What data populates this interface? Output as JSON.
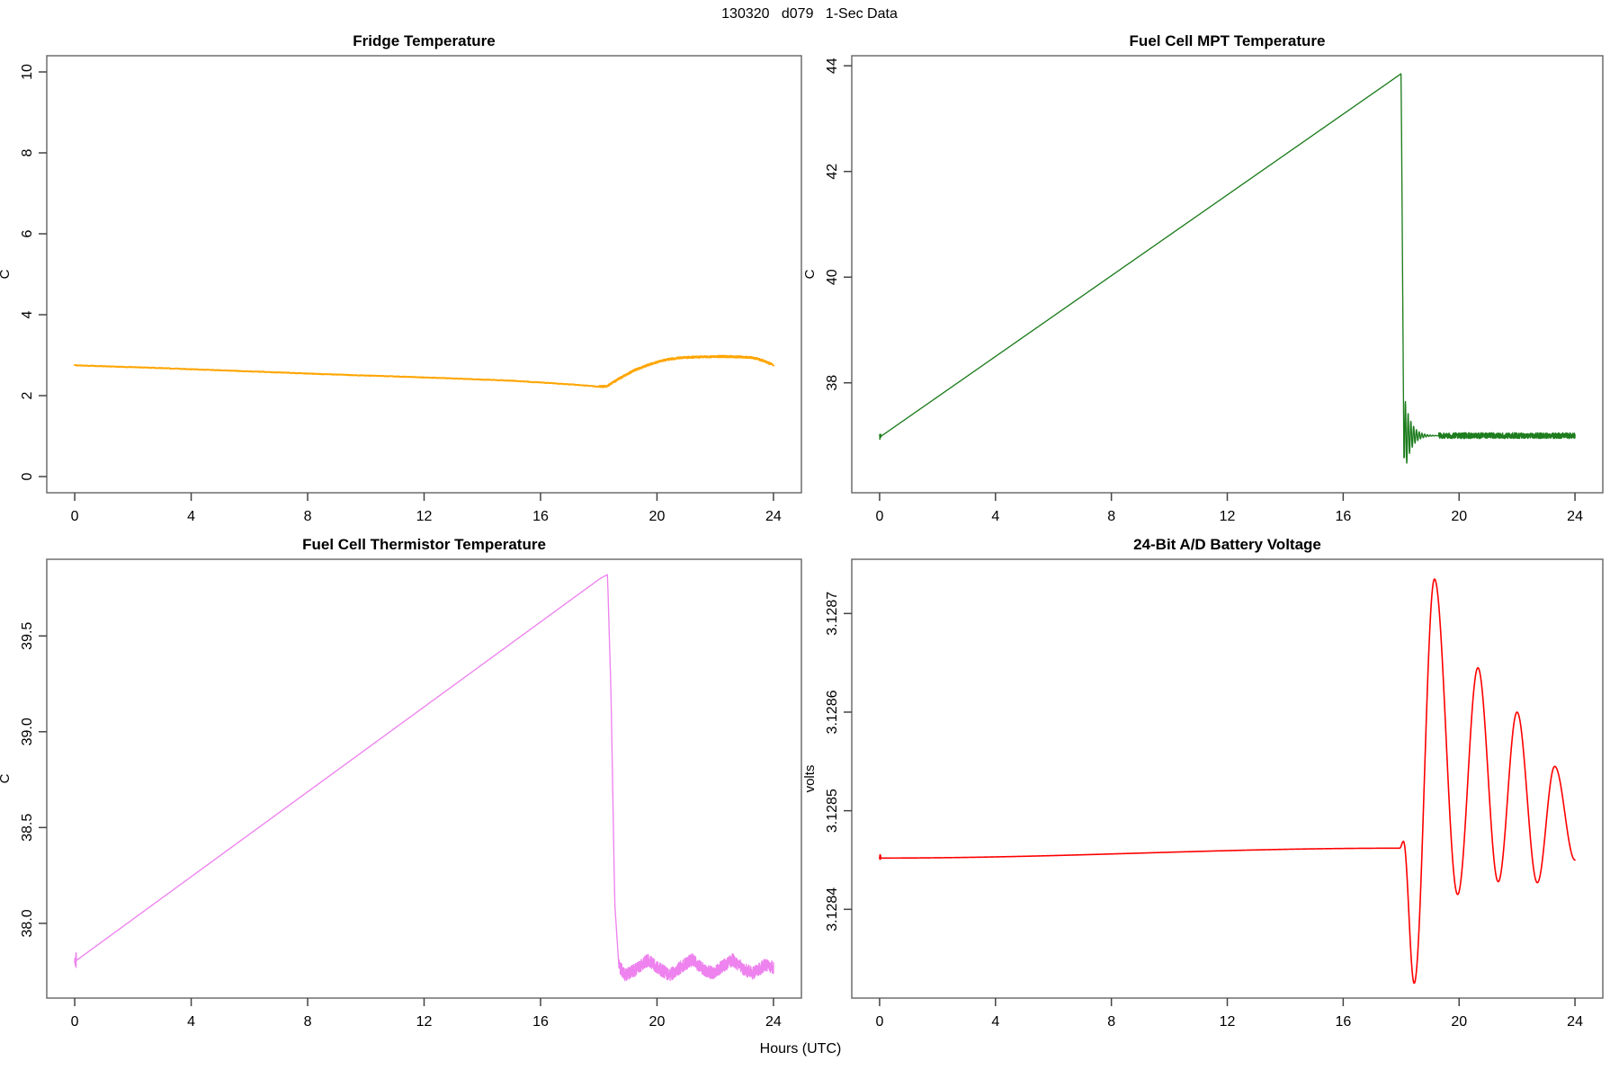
{
  "figure": {
    "title": "130320   d079   1-Sec Data",
    "xlabel": "Hours (UTC)",
    "background": "#ffffff",
    "border_color": "#6e6e6e",
    "tick_color": "#444444",
    "text_color": "#000000"
  },
  "chart_data": [
    {
      "id": "fridge-temperature",
      "type": "line",
      "title": "Fridge Temperature",
      "ylabel": "C",
      "color": "#FFA500",
      "xlim": [
        -0.96,
        24.96
      ],
      "ylim": [
        -0.4,
        10.4
      ],
      "xticks": [
        "0",
        "4",
        "8",
        "12",
        "16",
        "20",
        "24"
      ],
      "yticks": [
        {
          "v": 0,
          "label": "0"
        },
        {
          "v": 2,
          "label": "2"
        },
        {
          "v": 4,
          "label": "4"
        },
        {
          "v": 6,
          "label": "6"
        },
        {
          "v": 8,
          "label": "8"
        },
        {
          "v": 10,
          "label": "10"
        }
      ],
      "series": {
        "interp": "linear",
        "anchors": [
          [
            0,
            2.75
          ],
          [
            3,
            2.68
          ],
          [
            6,
            2.6
          ],
          [
            9,
            2.52
          ],
          [
            12,
            2.45
          ],
          [
            15,
            2.37
          ],
          [
            17.2,
            2.27
          ],
          [
            18.0,
            2.22
          ],
          [
            18.3,
            2.24
          ],
          [
            18.7,
            2.42
          ],
          [
            19.2,
            2.62
          ],
          [
            19.7,
            2.76
          ],
          [
            20.2,
            2.87
          ],
          [
            20.7,
            2.93
          ],
          [
            21.2,
            2.95
          ],
          [
            21.7,
            2.96
          ],
          [
            22.2,
            2.97
          ],
          [
            22.7,
            2.96
          ],
          [
            23.1,
            2.95
          ],
          [
            23.4,
            2.92
          ],
          [
            23.7,
            2.85
          ],
          [
            24,
            2.76
          ]
        ],
        "noise": [
          {
            "from": 0,
            "to": 18,
            "amp": 0.007,
            "step": 0.02
          },
          {
            "from": 18,
            "to": 24,
            "amp": 0.02,
            "step": 0.008
          }
        ]
      }
    },
    {
      "id": "fuel-cell-mpt-temperature",
      "type": "line",
      "title": "Fuel Cell MPT Temperature",
      "ylabel": "C",
      "color": "#1E7D1E",
      "xlim": [
        -0.96,
        24.96
      ],
      "ylim": [
        35.92,
        44.19
      ],
      "xticks": [
        "0",
        "4",
        "8",
        "12",
        "16",
        "20",
        "24"
      ],
      "yticks": [
        {
          "v": 38,
          "label": "38"
        },
        {
          "v": 40,
          "label": "40"
        },
        {
          "v": 42,
          "label": "42"
        },
        {
          "v": 44,
          "label": "44"
        }
      ],
      "series": {
        "interp": "linear",
        "anchors": [
          [
            0,
            36.97
          ],
          [
            18.0,
            43.85
          ],
          [
            18.1,
            36.2
          ]
        ],
        "damped": {
          "from": 18.1,
          "to": 19.3,
          "center": 37.0,
          "amp0": 0.8,
          "decay": 0.22,
          "period": 0.095
        },
        "noise": [
          {
            "from": 0,
            "to": 0.05,
            "amp": 0.06,
            "step": 0.005
          },
          {
            "from": 19.3,
            "to": 24,
            "amp": 0.055,
            "step": 0.005,
            "centers": [
              [
                19.3,
                37.0
              ],
              [
                24,
                37.0
              ]
            ]
          }
        ]
      }
    },
    {
      "id": "fuel-cell-thermistor-temperature",
      "type": "line",
      "title": "Fuel Cell Thermistor Temperature",
      "ylabel": "C",
      "color": "#EE82EE",
      "xlim": [
        -0.96,
        24.96
      ],
      "ylim": [
        37.61,
        39.9
      ],
      "xticks": [
        "0",
        "4",
        "8",
        "12",
        "16",
        "20",
        "24"
      ],
      "yticks": [
        {
          "v": 38.0,
          "label": "38.0"
        },
        {
          "v": 38.5,
          "label": "38.5"
        },
        {
          "v": 39.0,
          "label": "39.0"
        },
        {
          "v": 39.5,
          "label": "39.5"
        }
      ],
      "series": {
        "interp": "linear",
        "anchors": [
          [
            0,
            37.8
          ],
          [
            18.05,
            39.8
          ],
          [
            18.3,
            39.82
          ],
          [
            18.42,
            39.2
          ],
          [
            18.55,
            38.1
          ],
          [
            18.68,
            37.8
          ]
        ],
        "noise": [
          {
            "from": 0,
            "to": 0.05,
            "amp": 0.05,
            "step": 0.005
          },
          {
            "from": 18.68,
            "to": 24,
            "amp": 0.033,
            "step": 0.004,
            "centers": [
              [
                18.68,
                37.78
              ],
              [
                18.9,
                37.73
              ],
              [
                19.3,
                37.76
              ],
              [
                19.7,
                37.81
              ],
              [
                20.1,
                37.76
              ],
              [
                20.45,
                37.73
              ],
              [
                20.8,
                37.77
              ],
              [
                21.2,
                37.81
              ],
              [
                21.6,
                37.76
              ],
              [
                21.9,
                37.74
              ],
              [
                22.3,
                37.78
              ],
              [
                22.6,
                37.81
              ],
              [
                23.0,
                37.76
              ],
              [
                23.3,
                37.74
              ],
              [
                23.7,
                37.78
              ],
              [
                24,
                37.77
              ]
            ]
          }
        ]
      }
    },
    {
      "id": "battery-voltage",
      "type": "line",
      "title": "24-Bit A/D Battery Voltage",
      "ylabel": "volts",
      "color": "#FF0000",
      "xlim": [
        -0.96,
        24.96
      ],
      "ylim": [
        3.12831,
        3.128755
      ],
      "xticks": [
        "0",
        "4",
        "8",
        "12",
        "16",
        "20",
        "24"
      ],
      "yticks": [
        {
          "v": 3.1284,
          "label": "3.1284"
        },
        {
          "v": 3.1285,
          "label": "3.1285"
        },
        {
          "v": 3.1286,
          "label": "3.1286"
        },
        {
          "v": 3.1287,
          "label": "3.1287"
        }
      ],
      "series": {
        "interp": "cosine",
        "anchors": [
          [
            0,
            3.128452
          ],
          [
            17.95,
            3.128462
          ],
          [
            18.08,
            3.128469
          ],
          [
            18.45,
            3.128325
          ],
          [
            19.15,
            3.128735
          ],
          [
            19.95,
            3.128415
          ],
          [
            20.65,
            3.128645
          ],
          [
            21.35,
            3.128428
          ],
          [
            22.0,
            3.1286
          ],
          [
            22.7,
            3.128427
          ],
          [
            23.3,
            3.128545
          ],
          [
            24,
            3.12845
          ]
        ],
        "noise": [
          {
            "from": 0,
            "to": 0.04,
            "amp": 3.5e-06,
            "step": 0.004
          }
        ]
      }
    }
  ]
}
